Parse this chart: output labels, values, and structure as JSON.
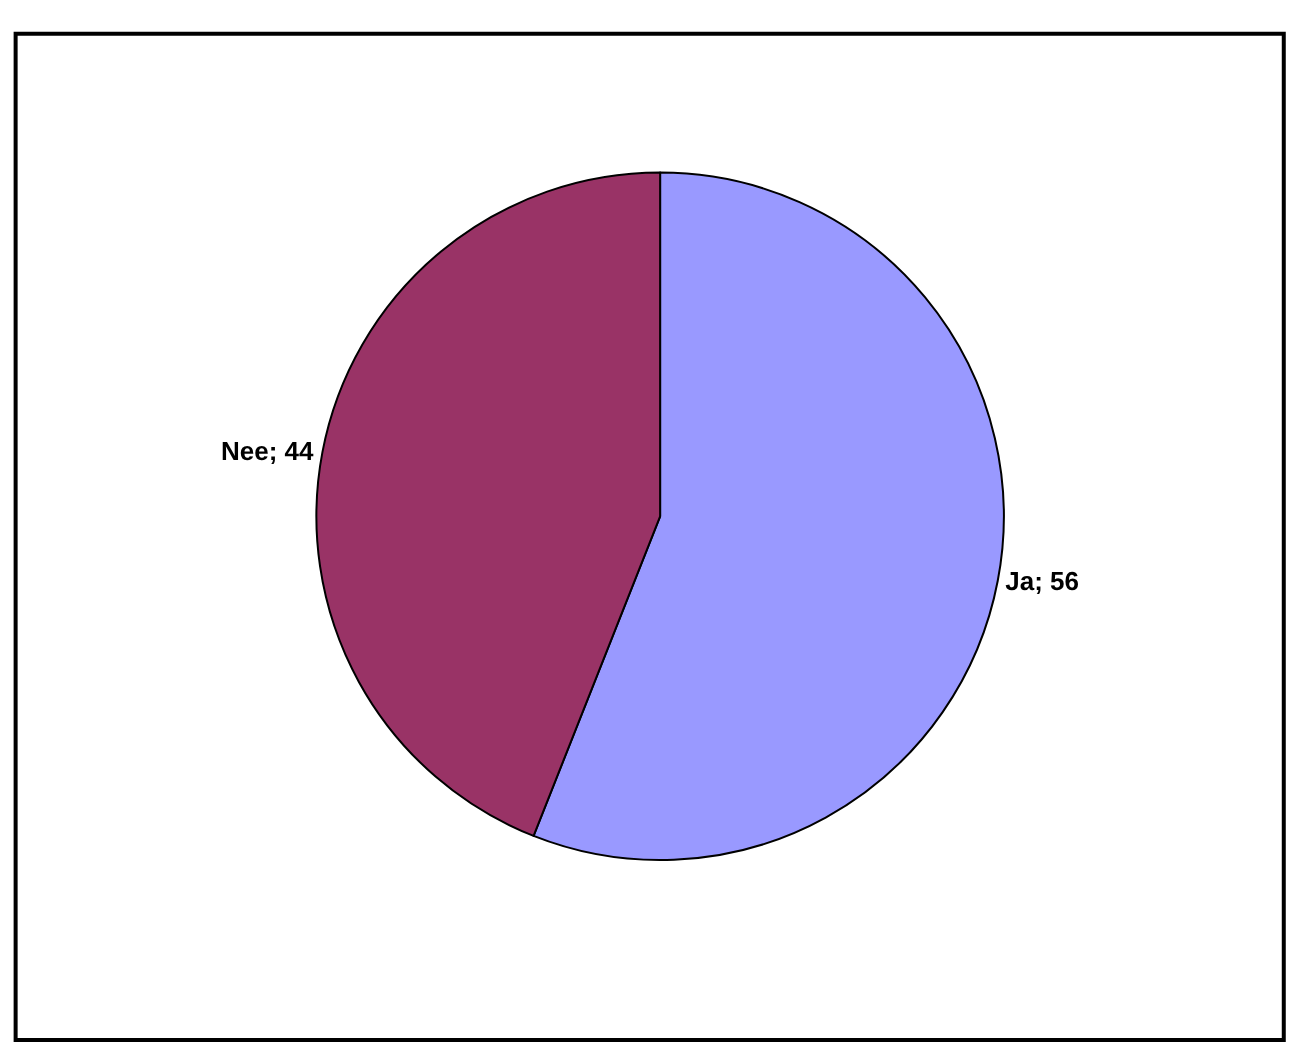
{
  "chart_data": {
    "type": "pie",
    "categories": [
      "Ja",
      "Nee"
    ],
    "values": [
      56,
      44
    ],
    "colors": [
      "#9999ff",
      "#993366"
    ],
    "value_labels": [
      "56",
      "44"
    ]
  }
}
